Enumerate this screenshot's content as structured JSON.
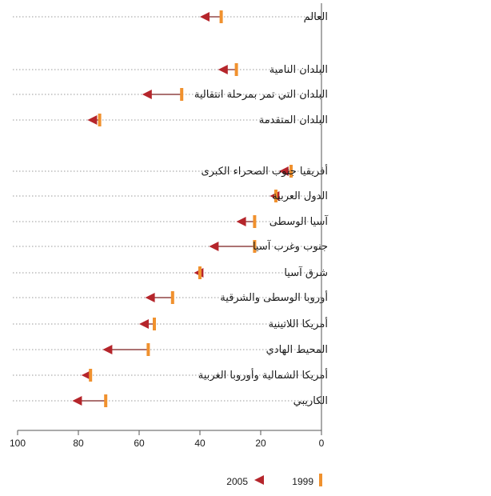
{
  "chart_data": {
    "type": "dot-arrow",
    "categories": [
      "العالم",
      "البلدان النامية",
      "البلدان التي تمر بمرحلة انتقالية",
      "البلدان المتقدمة",
      "أفريقيا جنوب الصحراء الكبرى",
      "الدول العربية",
      "آسيا الوسطى",
      "جنوب وغرب آسيا",
      "شرق آسيا",
      "أوروبا الوسطى والشرقية",
      "أمريكا اللاتينية",
      "المحيط الهادي",
      "أمريكا الشمالية وأوروبا الغربية",
      "الكاريبي"
    ],
    "series": [
      {
        "name": "1999",
        "marker": "bar",
        "color": "#f0912e",
        "values": [
          33,
          28,
          46,
          73,
          10,
          15,
          22,
          22,
          40,
          49,
          55,
          57,
          76,
          71
        ]
      },
      {
        "name": "2005",
        "marker": "triangle",
        "color": "#b5252b",
        "values": [
          40,
          34,
          59,
          77,
          14,
          17,
          28,
          37,
          42,
          58,
          60,
          72,
          79,
          82
        ]
      }
    ],
    "xlim": [
      0,
      100
    ],
    "x_reversed": true,
    "xticks": [
      "100",
      "80",
      "60",
      "40",
      "20",
      "0"
    ],
    "xtick_values": [
      100,
      80,
      60,
      40,
      20,
      0
    ],
    "grid": "dotted-row-guides",
    "legend_position": "bottom-right"
  }
}
